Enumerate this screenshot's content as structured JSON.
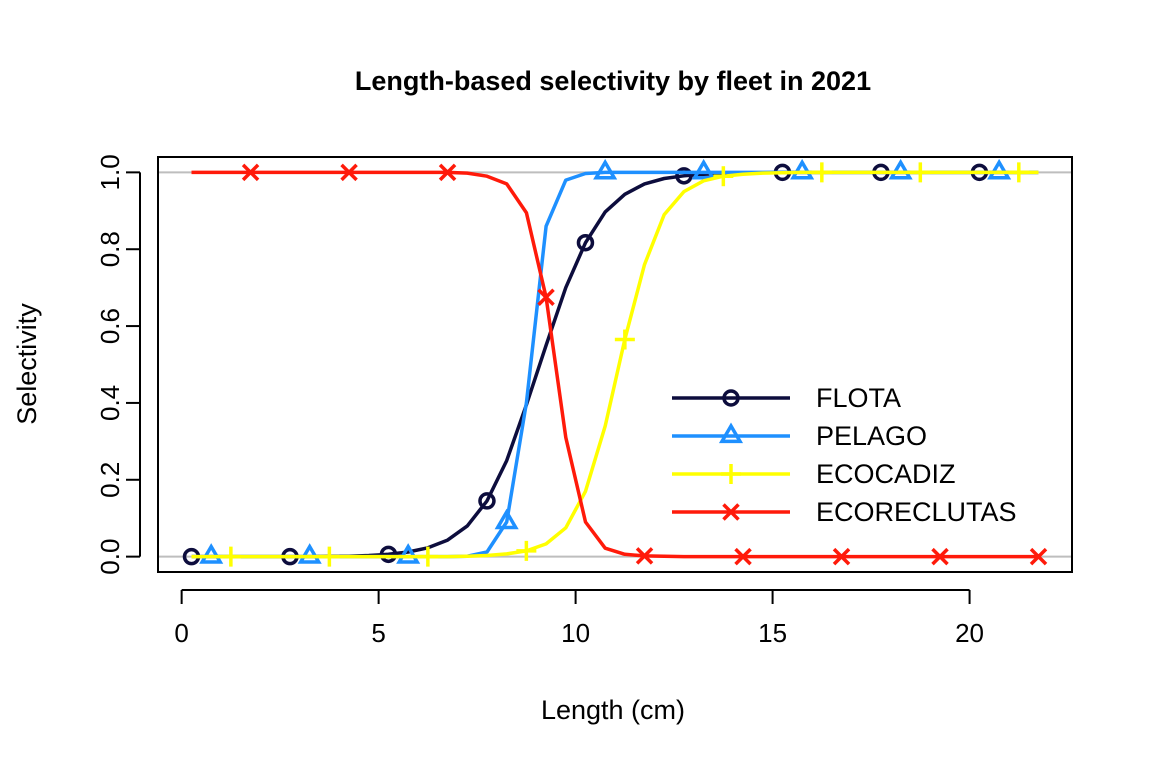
{
  "chart_data": {
    "type": "line",
    "title": "Length-based selectivity by fleet in 2021",
    "xlabel": "Length (cm)",
    "ylabel": "Selectivity",
    "xlim": [
      -0.6,
      22.6
    ],
    "ylim": [
      -0.04,
      1.04
    ],
    "x_ticks": [
      0,
      5,
      10,
      15,
      20
    ],
    "x_tick_labels": [
      "0",
      "5",
      "10",
      "15",
      "20"
    ],
    "y_ticks": [
      0.0,
      0.2,
      0.4,
      0.6,
      0.8,
      1.0
    ],
    "y_tick_labels": [
      "0.0",
      "0.2",
      "0.4",
      "0.6",
      "0.8",
      "1.0"
    ],
    "reference_lines_y": [
      0,
      1
    ],
    "legend_position": "bottom-right",
    "x": [
      0.25,
      0.75,
      1.25,
      1.75,
      2.25,
      2.75,
      3.25,
      3.75,
      4.25,
      4.75,
      5.25,
      5.75,
      6.25,
      6.75,
      7.25,
      7.75,
      8.25,
      8.75,
      9.25,
      9.75,
      10.25,
      10.75,
      11.25,
      11.75,
      12.25,
      12.75,
      13.25,
      13.75,
      14.25,
      14.75,
      15.25,
      15.75,
      16.25,
      16.75,
      17.25,
      17.75,
      18.25,
      18.75,
      19.25,
      19.75,
      20.25,
      20.75,
      21.25,
      21.75
    ],
    "series": [
      {
        "name": "FLOTA",
        "color": "#0d0d3d",
        "marker": "circle",
        "marker_offset": 0,
        "values": [
          0,
          0,
          0,
          0,
          0,
          0,
          0,
          0.001,
          0.001,
          0.003,
          0.006,
          0.012,
          0.023,
          0.043,
          0.08,
          0.145,
          0.25,
          0.395,
          0.55,
          0.7,
          0.817,
          0.897,
          0.943,
          0.97,
          0.984,
          0.991,
          0.995,
          0.997,
          0.999,
          0.999,
          1,
          1,
          1,
          1,
          1,
          1,
          1,
          1,
          1,
          1,
          1,
          1,
          1,
          1
        ]
      },
      {
        "name": "PELAGO",
        "color": "#1e90ff",
        "marker": "triangle",
        "marker_offset": 1,
        "values": [
          0,
          0,
          0,
          0,
          0,
          0,
          0,
          0,
          0,
          0,
          0,
          0,
          0,
          0,
          0.001,
          0.012,
          0.09,
          0.4,
          0.86,
          0.98,
          0.997,
          1,
          1,
          1,
          1,
          1,
          1,
          1,
          1,
          1,
          1,
          1,
          1,
          1,
          1,
          1,
          1,
          1,
          1,
          1,
          1,
          1,
          1,
          1
        ]
      },
      {
        "name": "ECOCADIZ",
        "color": "#ffff00",
        "marker": "plus",
        "marker_offset": 2,
        "values": [
          0,
          0,
          0,
          0,
          0,
          0,
          0,
          0,
          0,
          0,
          0,
          0,
          0,
          0,
          0.001,
          0.003,
          0.007,
          0.015,
          0.033,
          0.075,
          0.17,
          0.34,
          0.565,
          0.76,
          0.89,
          0.95,
          0.978,
          0.99,
          0.995,
          0.998,
          0.999,
          1,
          1,
          1,
          1,
          1,
          1,
          1,
          1,
          1,
          1,
          1,
          1,
          1
        ]
      },
      {
        "name": "ECORECLUTAS",
        "color": "#ff1a0a",
        "marker": "cross",
        "marker_offset": 3,
        "values": [
          1,
          1,
          1,
          1,
          1,
          1,
          1,
          1,
          1,
          1,
          1,
          1,
          1,
          1,
          0.998,
          0.99,
          0.97,
          0.895,
          0.675,
          0.31,
          0.09,
          0.022,
          0.006,
          0.002,
          0.001,
          0,
          0,
          0,
          0,
          0,
          0,
          0,
          0,
          0,
          0,
          0,
          0,
          0,
          0,
          0,
          0,
          0,
          0,
          0
        ]
      }
    ]
  }
}
